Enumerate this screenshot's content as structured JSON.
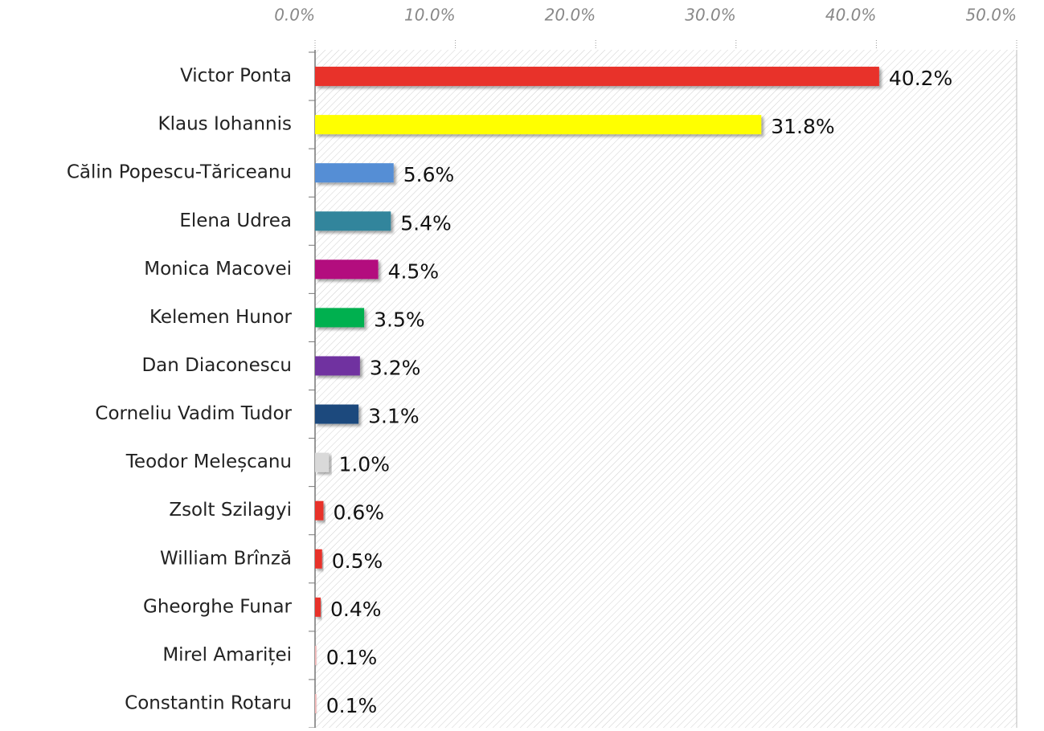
{
  "chart_data": {
    "type": "hbar",
    "categories": [
      "Victor Ponta",
      "Klaus Iohannis",
      "Călin Popescu-Tăriceanu",
      "Elena Udrea",
      "Monica Macovei",
      "Kelemen Hunor",
      "Dan Diaconescu",
      "Corneliu Vadim Tudor",
      "Teodor Meleșcanu",
      "Zsolt Szilagyi",
      "William Brînză",
      "Gheorghe Funar",
      "Mirel Amariței",
      "Constantin Rotaru"
    ],
    "values": [
      40.2,
      31.8,
      5.6,
      5.4,
      4.5,
      3.5,
      3.2,
      3.1,
      1.0,
      0.6,
      0.5,
      0.4,
      0.1,
      0.1
    ],
    "value_labels": [
      "40.2%",
      "31.8%",
      "5.6%",
      "5.4%",
      "4.5%",
      "3.5%",
      "3.2%",
      "3.1%",
      "1.0%",
      "0.6%",
      "0.5%",
      "0.4%",
      "0.1%",
      "0.1%"
    ],
    "colors": [
      "#e8312a",
      "#ffff00",
      "#558ed5",
      "#31859c",
      "#b3087e",
      "#00b050",
      "#7030a0",
      "#1f497d",
      "#d9d9d9",
      "#e8312a",
      "#e8312a",
      "#e8312a",
      "#f2b8b8",
      "#f2b8b8"
    ],
    "xlim": [
      0,
      50
    ],
    "xticks": [
      {
        "value": 0,
        "label": "0.0%"
      },
      {
        "value": 10,
        "label": "10.0%"
      },
      {
        "value": 20,
        "label": "20.0%"
      },
      {
        "value": 30,
        "label": "30.0%"
      },
      {
        "value": 40,
        "label": "40.0%"
      },
      {
        "value": 50,
        "label": "50.0%"
      }
    ]
  }
}
